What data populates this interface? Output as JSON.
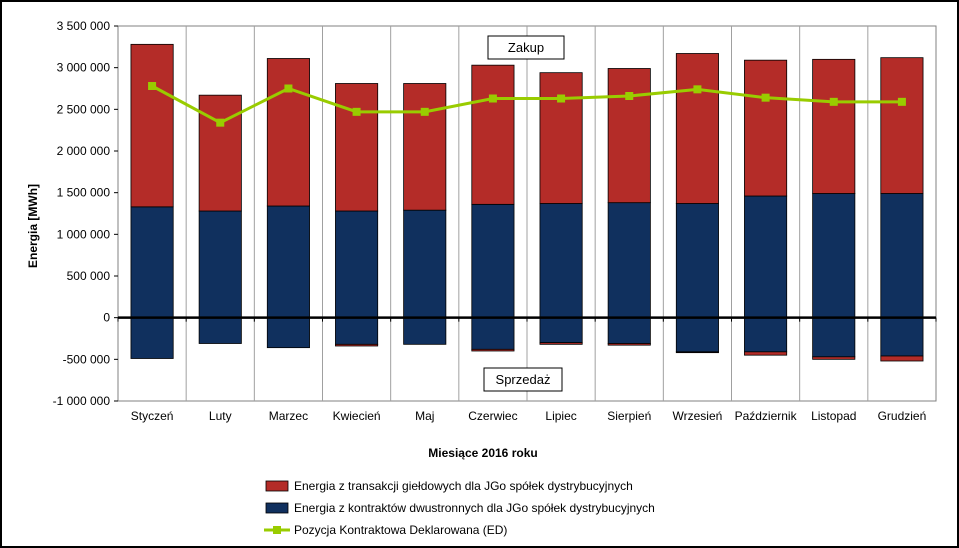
{
  "chart_data": {
    "type": "bar",
    "stacked": true,
    "xlabel": "Miesiące 2016  roku",
    "ylabel": "Energia  [MWh]",
    "ylim": [
      -1000000,
      3500000
    ],
    "yticks": [
      -1000000,
      -500000,
      0,
      500000,
      1000000,
      1500000,
      2000000,
      2500000,
      3000000,
      3500000
    ],
    "ytick_labels": [
      "-1 000 000",
      "-500 000",
      "0",
      "500 000",
      "1 000 000",
      "1 500 000",
      "2 000 000",
      "2 500 000",
      "3 000 000",
      "3 500 000"
    ],
    "grid": "vertical",
    "legend_position": "bottom",
    "categories": [
      "Styczeń",
      "Luty",
      "Marzec",
      "Kwiecień",
      "Maj",
      "Czerwiec",
      "Lipiec",
      "Sierpień",
      "Wrzesień",
      "Październik",
      "Listopad",
      "Grudzień"
    ],
    "annotations": {
      "top": "Zakup",
      "bottom": "Sprzedaż"
    },
    "series": [
      {
        "name": "Energia z kontraktów dwustronnych dla JGo spółek dystrybucyjnych",
        "type": "bar",
        "color": "#10305e",
        "positive": [
          1330000,
          1280000,
          1340000,
          1280000,
          1290000,
          1360000,
          1370000,
          1380000,
          1370000,
          1460000,
          1490000,
          1490000
        ],
        "negative": [
          -490000,
          -310000,
          -360000,
          -320000,
          -320000,
          -380000,
          -300000,
          -310000,
          -410000,
          -410000,
          -470000,
          -460000
        ]
      },
      {
        "name": "Energia z transakcji giełdowych dla JGo spółek dystrybucyjnych",
        "type": "bar",
        "color": "#b42c28",
        "positive": [
          1950000,
          1390000,
          1770000,
          1530000,
          1520000,
          1670000,
          1570000,
          1610000,
          1800000,
          1630000,
          1610000,
          1630000
        ],
        "negative": [
          0,
          0,
          0,
          -20000,
          0,
          -20000,
          -20000,
          -20000,
          -10000,
          -40000,
          -30000,
          -60000
        ]
      },
      {
        "name": "Pozycja Kontraktowa Deklarowana (ED)",
        "type": "line",
        "color": "#99cc00",
        "values": [
          2780000,
          2340000,
          2750000,
          2470000,
          2470000,
          2630000,
          2630000,
          2660000,
          2740000,
          2640000,
          2590000,
          2590000
        ]
      }
    ]
  }
}
